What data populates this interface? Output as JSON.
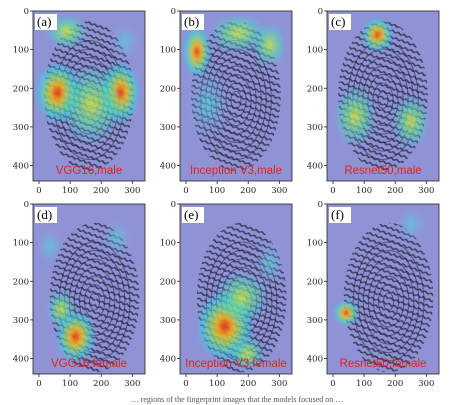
{
  "figure": {
    "background_color": "#8f93d6",
    "fingerprint_ridge_color": "#23253a",
    "y_ticks": [
      "0",
      "100",
      "200",
      "300",
      "400"
    ],
    "x_ticks": [
      "0",
      "100",
      "200",
      "300"
    ],
    "panels": [
      {
        "letter": "(a)",
        "caption": "VGG16,male",
        "hotspots": [
          {
            "cx": 0.22,
            "cy": 0.48,
            "rx": 0.16,
            "ry": 0.14,
            "level": 1.0
          },
          {
            "cx": 0.78,
            "cy": 0.48,
            "rx": 0.14,
            "ry": 0.14,
            "level": 0.95
          },
          {
            "cx": 0.52,
            "cy": 0.55,
            "rx": 0.22,
            "ry": 0.18,
            "level": 0.6
          },
          {
            "cx": 0.3,
            "cy": 0.12,
            "rx": 0.15,
            "ry": 0.08,
            "level": 0.45
          },
          {
            "cx": 0.82,
            "cy": 0.18,
            "rx": 0.1,
            "ry": 0.08,
            "level": 0.4
          }
        ]
      },
      {
        "letter": "(b)",
        "caption": "Inception V3,male",
        "hotspots": [
          {
            "cx": 0.15,
            "cy": 0.24,
            "rx": 0.1,
            "ry": 0.12,
            "level": 1.0
          },
          {
            "cx": 0.52,
            "cy": 0.13,
            "rx": 0.2,
            "ry": 0.09,
            "level": 0.55
          },
          {
            "cx": 0.8,
            "cy": 0.2,
            "rx": 0.12,
            "ry": 0.1,
            "level": 0.45
          },
          {
            "cx": 0.25,
            "cy": 0.55,
            "rx": 0.15,
            "ry": 0.16,
            "level": 0.35
          }
        ]
      },
      {
        "letter": "(c)",
        "caption": "Resnet50,male",
        "hotspots": [
          {
            "cx": 0.45,
            "cy": 0.14,
            "rx": 0.11,
            "ry": 0.08,
            "level": 1.0
          },
          {
            "cx": 0.25,
            "cy": 0.62,
            "rx": 0.15,
            "ry": 0.14,
            "level": 0.7
          },
          {
            "cx": 0.75,
            "cy": 0.65,
            "rx": 0.13,
            "ry": 0.12,
            "level": 0.5
          }
        ]
      },
      {
        "letter": "(d)",
        "caption": "VGG16,female",
        "hotspots": [
          {
            "cx": 0.38,
            "cy": 0.78,
            "rx": 0.14,
            "ry": 0.12,
            "level": 1.0
          },
          {
            "cx": 0.25,
            "cy": 0.62,
            "rx": 0.1,
            "ry": 0.09,
            "level": 0.65
          },
          {
            "cx": 0.75,
            "cy": 0.2,
            "rx": 0.1,
            "ry": 0.08,
            "level": 0.3
          },
          {
            "cx": 0.15,
            "cy": 0.25,
            "rx": 0.09,
            "ry": 0.08,
            "level": 0.25
          }
        ]
      },
      {
        "letter": "(e)",
        "caption": "Inception V3,female",
        "hotspots": [
          {
            "cx": 0.4,
            "cy": 0.72,
            "rx": 0.2,
            "ry": 0.16,
            "level": 1.0
          },
          {
            "cx": 0.55,
            "cy": 0.55,
            "rx": 0.18,
            "ry": 0.12,
            "level": 0.6
          },
          {
            "cx": 0.6,
            "cy": 0.88,
            "rx": 0.12,
            "ry": 0.08,
            "level": 0.55
          },
          {
            "cx": 0.8,
            "cy": 0.35,
            "rx": 0.1,
            "ry": 0.1,
            "level": 0.35
          }
        ]
      },
      {
        "letter": "(f)",
        "caption": "Resnet50,female",
        "hotspots": [
          {
            "cx": 0.17,
            "cy": 0.64,
            "rx": 0.09,
            "ry": 0.06,
            "level": 1.0
          },
          {
            "cx": 0.75,
            "cy": 0.12,
            "rx": 0.1,
            "ry": 0.08,
            "level": 0.3
          }
        ]
      }
    ],
    "bottom_strip_text": "… regions of the fingerprint images that the models focused on …"
  }
}
